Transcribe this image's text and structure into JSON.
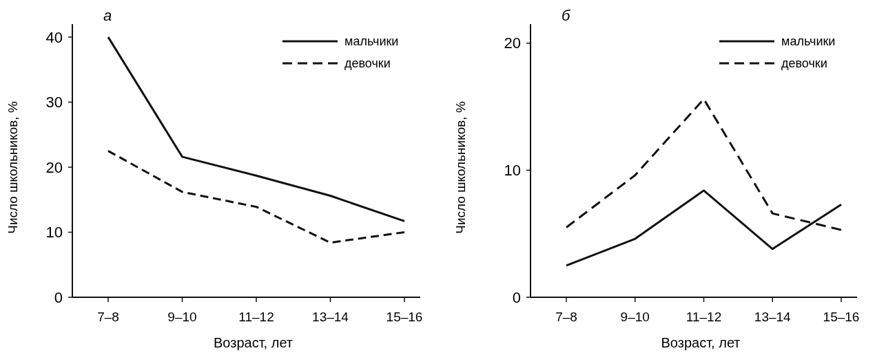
{
  "chart_data": [
    {
      "type": "line",
      "title": "а",
      "xlabel": "Возраст, лет",
      "ylabel": "Число школьников, %",
      "categories": [
        "7–8",
        "9–10",
        "11–12",
        "13–14",
        "15–16"
      ],
      "series": [
        {
          "name": "мальчики",
          "color": "#111111",
          "line_style": "solid",
          "values": [
            40,
            21.6,
            18.7,
            15.6,
            11.7
          ]
        },
        {
          "name": "девочки",
          "color": "#111111",
          "line_style": "dashed",
          "values": [
            22.5,
            16.2,
            13.9,
            8.4,
            10.0
          ]
        }
      ],
      "ylim": [
        0,
        42
      ],
      "yticks": [
        0,
        10,
        20,
        30,
        40
      ],
      "grid": false,
      "legend": "top right",
      "marker": "none"
    },
    {
      "type": "line",
      "title": "б",
      "xlabel": "Возраст, лет",
      "ylabel": "Число школьников, %",
      "categories": [
        "7–8",
        "9–10",
        "11–12",
        "13–14",
        "15–16"
      ],
      "series": [
        {
          "name": "мальчики",
          "color": "#111111",
          "line_style": "solid",
          "values": [
            2.5,
            4.6,
            8.4,
            3.8,
            7.3
          ]
        },
        {
          "name": "девочки",
          "color": "#111111",
          "line_style": "dashed",
          "values": [
            5.5,
            9.6,
            15.6,
            6.6,
            5.3
          ]
        }
      ],
      "ylim": [
        0,
        21.5
      ],
      "yticks": [
        0,
        10,
        20
      ],
      "grid": false,
      "legend": "top right",
      "marker": "none"
    }
  ]
}
